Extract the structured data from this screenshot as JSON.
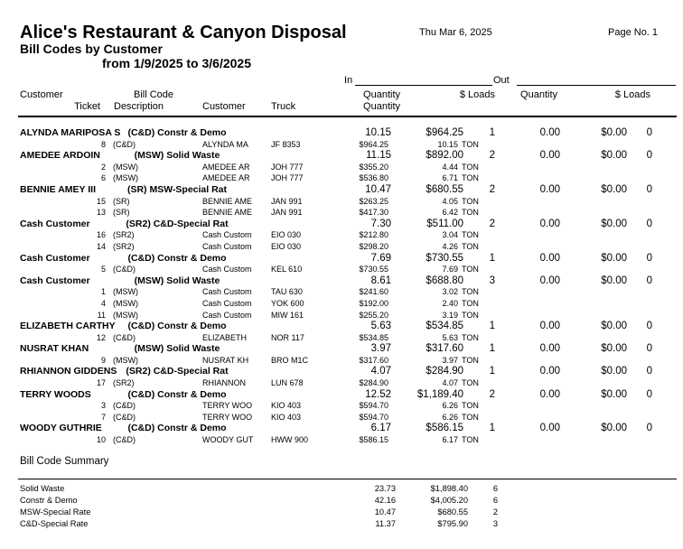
{
  "page": {
    "title": "Alice's Restaurant & Canyon Disposal",
    "date": "Thu Mar 6, 2025",
    "page_no": "Page No. 1",
    "report_name": "Bill Codes by Customer",
    "date_range": "from 1/9/2025 to 3/6/2025"
  },
  "header": {
    "in": "In",
    "out": "Out",
    "row1": {
      "customer": "Customer",
      "bill_code": "Bill Code",
      "qty_in": "Quantity",
      "loads_in": "$ Loads",
      "qty_out": "Quantity",
      "loads_out": "$ Loads"
    },
    "row2": {
      "ticket": "Ticket",
      "description": "Description",
      "customer": "Customer",
      "truck": "Truck",
      "quantity": "Quantity"
    }
  },
  "table": {
    "groups": [
      {
        "customer": "ALYNDA MARIPOSA S",
        "bill_code_desc": "(C&D) Constr & Demo",
        "in_qty": "10.15",
        "in_amount": "$964.25",
        "in_loads": "1",
        "out_qty": "0.00",
        "out_amount": "$0.00",
        "out_loads": "0",
        "tickets": [
          {
            "ticket": "8",
            "code": "(C&D)",
            "customer": "ALYNDA MA",
            "truck": "JF 8353",
            "amount": "$964.25",
            "qty": "10.15",
            "unit": "TON"
          }
        ]
      },
      {
        "customer": "AMEDEE ARDOIN",
        "bill_code_desc": "(MSW) Solid Waste",
        "in_qty": "11.15",
        "in_amount": "$892.00",
        "in_loads": "2",
        "out_qty": "0.00",
        "out_amount": "$0.00",
        "out_loads": "0",
        "tickets": [
          {
            "ticket": "2",
            "code": "(MSW)",
            "customer": "AMEDEE AR",
            "truck": "JOH 777",
            "amount": "$355.20",
            "qty": "4.44",
            "unit": "TON"
          },
          {
            "ticket": "6",
            "code": "(MSW)",
            "customer": "AMEDEE AR",
            "truck": "JOH 777",
            "amount": "$536.80",
            "qty": "6.71",
            "unit": "TON"
          }
        ]
      },
      {
        "customer": "BENNIE AMEY III",
        "bill_code_desc": "(SR) MSW-Special Rat",
        "in_qty": "10.47",
        "in_amount": "$680.55",
        "in_loads": "2",
        "out_qty": "0.00",
        "out_amount": "$0.00",
        "out_loads": "0",
        "tickets": [
          {
            "ticket": "15",
            "code": "(SR)",
            "customer": "BENNIE AME",
            "truck": "JAN 991",
            "amount": "$263.25",
            "qty": "4.05",
            "unit": "TON"
          },
          {
            "ticket": "13",
            "code": "(SR)",
            "customer": "BENNIE AME",
            "truck": "JAN 991",
            "amount": "$417.30",
            "qty": "6.42",
            "unit": "TON"
          }
        ]
      },
      {
        "customer": "Cash Customer",
        "bill_code_desc": "(SR2) C&D-Special Rat",
        "in_qty": "7.30",
        "in_amount": "$511.00",
        "in_loads": "2",
        "out_qty": "0.00",
        "out_amount": "$0.00",
        "out_loads": "0",
        "tickets": [
          {
            "ticket": "16",
            "code": "(SR2)",
            "customer": "Cash Custom",
            "truck": "EIO 030",
            "amount": "$212.80",
            "qty": "3.04",
            "unit": "TON"
          },
          {
            "ticket": "14",
            "code": "(SR2)",
            "customer": "Cash Custom",
            "truck": "EIO 030",
            "amount": "$298.20",
            "qty": "4.26",
            "unit": "TON"
          }
        ]
      },
      {
        "customer": "Cash Customer",
        "bill_code_desc": "(C&D) Constr & Demo",
        "in_qty": "7.69",
        "in_amount": "$730.55",
        "in_loads": "1",
        "out_qty": "0.00",
        "out_amount": "$0.00",
        "out_loads": "0",
        "tickets": [
          {
            "ticket": "5",
            "code": "(C&D)",
            "customer": "Cash Custom",
            "truck": "KEL 610",
            "amount": "$730.55",
            "qty": "7.69",
            "unit": "TON"
          }
        ]
      },
      {
        "customer": "Cash Customer",
        "bill_code_desc": "(MSW) Solid Waste",
        "in_qty": "8.61",
        "in_amount": "$688.80",
        "in_loads": "3",
        "out_qty": "0.00",
        "out_amount": "$0.00",
        "out_loads": "0",
        "tickets": [
          {
            "ticket": "1",
            "code": "(MSW)",
            "customer": "Cash Custom",
            "truck": "TAU 630",
            "amount": "$241.60",
            "qty": "3.02",
            "unit": "TON"
          },
          {
            "ticket": "4",
            "code": "(MSW)",
            "customer": "Cash Custom",
            "truck": "YOK 600",
            "amount": "$192.00",
            "qty": "2.40",
            "unit": "TON"
          },
          {
            "ticket": "11",
            "code": "(MSW)",
            "customer": "Cash Custom",
            "truck": "MIW 161",
            "amount": "$255.20",
            "qty": "3.19",
            "unit": "TON"
          }
        ]
      },
      {
        "customer": "ELIZABETH CARTHY",
        "bill_code_desc": "(C&D) Constr & Demo",
        "in_qty": "5.63",
        "in_amount": "$534.85",
        "in_loads": "1",
        "out_qty": "0.00",
        "out_amount": "$0.00",
        "out_loads": "0",
        "tickets": [
          {
            "ticket": "12",
            "code": "(C&D)",
            "customer": "ELIZABETH",
            "truck": "NOR 117",
            "amount": "$534.85",
            "qty": "5.63",
            "unit": "TON"
          }
        ]
      },
      {
        "customer": "NUSRAT KHAN",
        "bill_code_desc": "(MSW) Solid Waste",
        "in_qty": "3.97",
        "in_amount": "$317.60",
        "in_loads": "1",
        "out_qty": "0.00",
        "out_amount": "$0.00",
        "out_loads": "0",
        "tickets": [
          {
            "ticket": "9",
            "code": "(MSW)",
            "customer": "NUSRAT KH",
            "truck": "BRO M1C",
            "amount": "$317.60",
            "qty": "3.97",
            "unit": "TON"
          }
        ]
      },
      {
        "customer": "RHIANNON GIDDENS",
        "bill_code_desc": "(SR2) C&D-Special Rat",
        "in_qty": "4.07",
        "in_amount": "$284.90",
        "in_loads": "1",
        "out_qty": "0.00",
        "out_amount": "$0.00",
        "out_loads": "0",
        "tickets": [
          {
            "ticket": "17",
            "code": "(SR2)",
            "customer": "RHIANNON",
            "truck": "LUN 678",
            "amount": "$284.90",
            "qty": "4.07",
            "unit": "TON"
          }
        ]
      },
      {
        "customer": "TERRY WOODS",
        "bill_code_desc": "(C&D) Constr & Demo",
        "in_qty": "12.52",
        "in_amount": "$1,189.40",
        "in_loads": "2",
        "out_qty": "0.00",
        "out_amount": "$0.00",
        "out_loads": "0",
        "tickets": [
          {
            "ticket": "3",
            "code": "(C&D)",
            "customer": "TERRY WOO",
            "truck": "KIO 403",
            "amount": "$594.70",
            "qty": "6.26",
            "unit": "TON"
          },
          {
            "ticket": "7",
            "code": "(C&D)",
            "customer": "TERRY WOO",
            "truck": "KIO 403",
            "amount": "$594.70",
            "qty": "6.26",
            "unit": "TON"
          }
        ]
      },
      {
        "customer": "WOODY GUTHRIE",
        "bill_code_desc": "(C&D) Constr & Demo",
        "in_qty": "6.17",
        "in_amount": "$586.15",
        "in_loads": "1",
        "out_qty": "0.00",
        "out_amount": "$0.00",
        "out_loads": "0",
        "tickets": [
          {
            "ticket": "10",
            "code": "(C&D)",
            "customer": "WOODY GUT",
            "truck": "HWW 900",
            "amount": "$586.15",
            "qty": "6.17",
            "unit": "TON"
          }
        ]
      }
    ]
  },
  "summary": {
    "heading": "Bill Code Summary",
    "rows": [
      {
        "label": "Solid Waste",
        "qty": "23.73",
        "amount": "$1,898.40",
        "loads": "6"
      },
      {
        "label": "Constr & Demo",
        "qty": "42.16",
        "amount": "$4,005.20",
        "loads": "6"
      },
      {
        "label": "MSW-Special Rate",
        "qty": "10.47",
        "amount": "$680.55",
        "loads": "2"
      },
      {
        "label": "C&D-Special Rate",
        "qty": "11.37",
        "amount": "$795.90",
        "loads": "3"
      }
    ]
  }
}
